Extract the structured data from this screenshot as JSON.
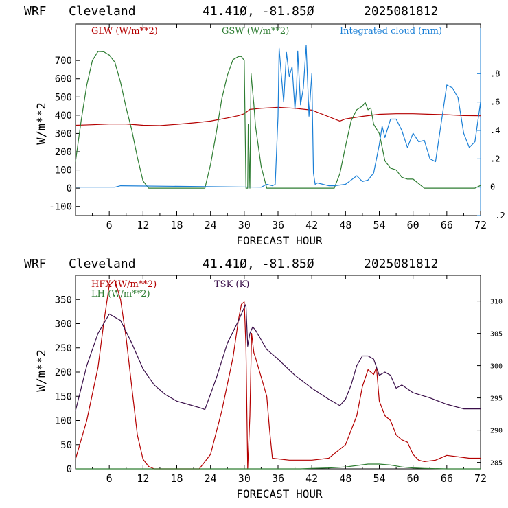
{
  "colors": {
    "background": "#ffffff",
    "axis": "#000000",
    "red": "#b40000",
    "green": "#2e7d32",
    "blue": "#1a7fd6",
    "purple": "#3a0f4a"
  },
  "chart_data": [
    {
      "type": "line",
      "header": {
        "model": "WRF",
        "location": "Cleveland",
        "coords": "41.41Ø, -81.85Ø",
        "run": "2025081812"
      },
      "xlabel": "FORECAST HOUR",
      "ylabel": "W/m**2",
      "xlim": [
        0,
        72
      ],
      "ylim": [
        -150,
        900
      ],
      "y2lim": [
        -0.2,
        1.15
      ],
      "x_ticks": [
        6,
        12,
        18,
        24,
        30,
        36,
        42,
        48,
        54,
        60,
        66,
        72
      ],
      "y_ticks": [
        -100,
        0,
        100,
        200,
        300,
        400,
        500,
        600,
        700
      ],
      "y2_ticks": [
        -0.2,
        0,
        0.2,
        0.4,
        0.6,
        0.8
      ],
      "y2_tick_labels": [
        "-.2",
        "0",
        ".2",
        ".4",
        ".6",
        ".8"
      ],
      "series": [
        {
          "name": "GLW (W/m**2)",
          "axis": "left",
          "color": "red",
          "x": [
            0,
            3,
            6,
            9,
            12,
            15,
            18,
            21,
            24,
            27,
            29,
            30,
            31,
            33,
            36,
            39,
            42,
            45,
            47,
            48,
            51,
            54,
            57,
            60,
            63,
            66,
            69,
            72
          ],
          "y": [
            345,
            348,
            352,
            352,
            345,
            343,
            350,
            358,
            368,
            385,
            398,
            408,
            432,
            438,
            443,
            438,
            428,
            392,
            368,
            380,
            394,
            405,
            408,
            408,
            405,
            403,
            398,
            397
          ]
        },
        {
          "name": "GSW (W/m**2)",
          "axis": "left",
          "color": "green",
          "x": [
            0,
            1,
            2,
            3,
            4,
            5,
            6,
            7,
            8,
            9,
            10,
            11,
            12,
            13,
            22,
            23,
            24,
            25,
            26,
            27,
            28,
            29,
            29.5,
            30,
            30.3,
            30.6,
            30.7,
            31,
            31.2,
            31.4,
            31.7,
            32,
            33,
            34,
            34.5,
            35,
            45,
            46,
            47,
            48,
            49,
            50,
            51,
            51.5,
            52,
            52.5,
            53,
            54,
            55,
            56,
            57,
            58,
            59,
            60,
            61,
            62,
            66,
            70,
            71,
            72
          ],
          "y": [
            145,
            370,
            565,
            700,
            750,
            748,
            730,
            690,
            580,
            440,
            320,
            170,
            40,
            0,
            0,
            0,
            130,
            300,
            490,
            620,
            705,
            722,
            722,
            700,
            0,
            0,
            350,
            0,
            630,
            560,
            460,
            340,
            120,
            0,
            0,
            0,
            0,
            0,
            80,
            230,
            370,
            430,
            450,
            470,
            430,
            440,
            350,
            300,
            150,
            110,
            100,
            60,
            50,
            50,
            25,
            0,
            0,
            0,
            0,
            15
          ]
        },
        {
          "name": "Integrated cloud (mm)",
          "axis": "right",
          "color": "blue",
          "x": [
            0,
            7,
            8,
            33,
            34,
            35,
            35.5,
            36,
            36.2,
            36.5,
            37,
            37.5,
            38,
            38.5,
            39,
            39.3,
            39.5,
            40,
            40.5,
            41,
            41.5,
            42,
            42.3,
            42.6,
            43,
            45,
            46,
            48,
            49,
            50,
            51,
            52,
            53,
            54,
            54.5,
            55,
            56,
            57,
            58,
            59,
            60,
            61,
            62,
            63,
            64,
            65,
            66,
            67,
            68,
            69,
            70,
            71,
            72
          ],
          "y": [
            0,
            0,
            0.01,
            0,
            0.02,
            0.01,
            0.02,
            0.5,
            0.98,
            0.83,
            0.6,
            0.95,
            0.78,
            0.85,
            0.55,
            0.7,
            0.96,
            0.58,
            0.7,
            1.0,
            0.5,
            0.8,
            0.1,
            0.02,
            0.03,
            0.01,
            0.01,
            0.02,
            0.05,
            0.08,
            0.04,
            0.05,
            0.1,
            0.3,
            0.43,
            0.35,
            0.48,
            0.48,
            0.4,
            0.28,
            0.38,
            0.32,
            0.33,
            0.2,
            0.18,
            0.45,
            0.72,
            0.7,
            0.63,
            0.38,
            0.28,
            0.32,
            0.6
          ]
        }
      ]
    },
    {
      "type": "line",
      "header": {
        "model": "WRF",
        "location": "Cleveland",
        "coords": "41.41Ø, -81.85Ø",
        "run": "2025081812"
      },
      "xlabel": "FORECAST HOUR",
      "ylabel": "W/m**2",
      "xlim": [
        0,
        72
      ],
      "ylim": [
        0,
        400
      ],
      "y2lim": [
        284,
        314
      ],
      "x_ticks": [
        6,
        12,
        18,
        24,
        30,
        36,
        42,
        48,
        54,
        60,
        66,
        72
      ],
      "y_ticks": [
        0,
        50,
        100,
        150,
        200,
        250,
        300,
        350
      ],
      "y2_ticks": [
        285,
        290,
        295,
        300,
        305,
        310
      ],
      "series": [
        {
          "name": "HFX (W/m**2)",
          "axis": "left",
          "color": "red",
          "x": [
            0,
            2,
            4,
            5,
            6,
            7,
            8,
            9,
            10,
            11,
            12,
            13,
            14,
            18,
            22,
            24,
            26,
            28,
            29,
            29.5,
            30,
            30.3,
            30.6,
            31,
            31.3,
            31.7,
            32,
            33,
            34,
            34.5,
            35,
            38,
            42,
            45,
            48,
            50,
            51,
            52,
            53,
            53.5,
            54,
            55,
            56,
            57,
            58,
            59,
            60,
            61,
            62,
            64,
            66,
            68,
            70,
            72
          ],
          "y": [
            20,
            100,
            210,
            300,
            380,
            390,
            350,
            270,
            170,
            70,
            20,
            5,
            0,
            0,
            0,
            30,
            120,
            230,
            310,
            340,
            345,
            250,
            0,
            110,
            280,
            240,
            230,
            190,
            150,
            80,
            22,
            18,
            18,
            22,
            50,
            110,
            170,
            205,
            195,
            210,
            140,
            110,
            100,
            70,
            60,
            55,
            30,
            18,
            15,
            18,
            28,
            25,
            22,
            22
          ]
        },
        {
          "name": "LH (W/m**2)",
          "axis": "left",
          "color": "green",
          "x": [
            0,
            40,
            42,
            45,
            48,
            50,
            52,
            54,
            56,
            58,
            60,
            62,
            66,
            72
          ],
          "y": [
            0,
            0,
            1,
            2,
            4,
            7,
            10,
            10,
            8,
            4,
            2,
            1,
            0,
            0
          ]
        },
        {
          "name": "TSK (K)",
          "axis": "right",
          "color": "purple",
          "x": [
            0,
            2,
            4,
            6,
            8,
            10,
            12,
            14,
            16,
            18,
            20,
            22,
            23,
            25,
            27,
            29,
            30,
            30.3,
            30.6,
            31,
            31.5,
            32,
            33,
            34,
            36,
            39,
            42,
            45,
            47,
            48,
            49,
            50,
            51,
            52,
            53,
            54,
            55,
            56,
            57,
            58,
            60,
            63,
            66,
            69,
            72
          ],
          "y": [
            293,
            300,
            305,
            308,
            307,
            303.5,
            299.5,
            297,
            295.5,
            294.5,
            294,
            293.5,
            293.2,
            298,
            303.5,
            307,
            309,
            309.5,
            303,
            305,
            306,
            305.5,
            304,
            302.5,
            301,
            298.5,
            296.5,
            294.8,
            293.8,
            294.8,
            297,
            300,
            301.5,
            301.5,
            301,
            298.5,
            299,
            298.5,
            296.5,
            297,
            295.8,
            295,
            294,
            293.3,
            293.3
          ]
        }
      ]
    }
  ]
}
